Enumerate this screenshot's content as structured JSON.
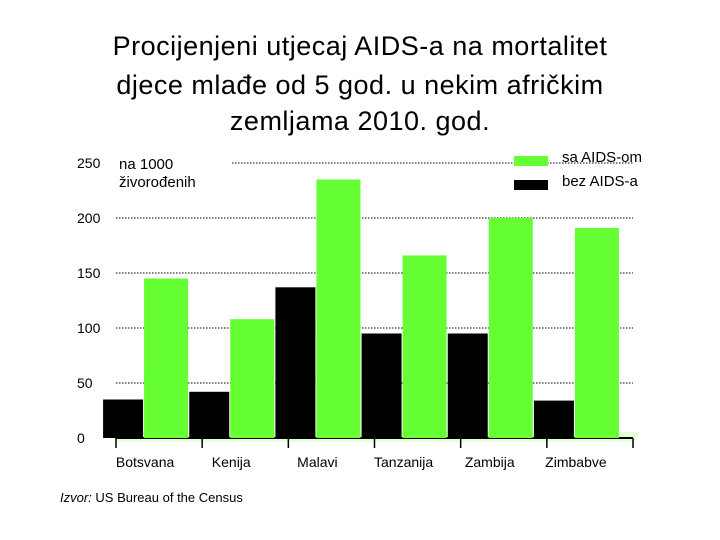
{
  "title_lines": [
    "Procijenjeni utjecaj AIDS-a na mortalitet",
    "djece mlađe od 5 god. u nekim afričkim",
    "zemljama 2010. god."
  ],
  "source": {
    "label": "Izvor:",
    "text": " US Bureau of  the Census"
  },
  "colors": {
    "with_aids": "#66ff33",
    "without_aids": "#000000",
    "floor": "#e6ffd9"
  },
  "chart_data": {
    "type": "bar",
    "categories": [
      "Botsvana",
      "Kenija",
      "Malavi",
      "Tanzanija",
      "Zambija",
      "Zimbabve"
    ],
    "series": [
      {
        "name": "sa AIDS-om",
        "values": [
          145,
          108,
          235,
          166,
          200,
          191
        ]
      },
      {
        "name": "bez AIDS-a",
        "values": [
          35,
          42,
          137,
          95,
          95,
          34
        ]
      }
    ],
    "ylabel": "na 1000 živorođenih",
    "ylabel_lines": [
      "na 1000",
      "živorođenih"
    ],
    "yticks": [
      0,
      50,
      100,
      150,
      200,
      250
    ],
    "ylim": [
      0,
      250
    ],
    "grid": true,
    "legend_position": "top-right"
  }
}
